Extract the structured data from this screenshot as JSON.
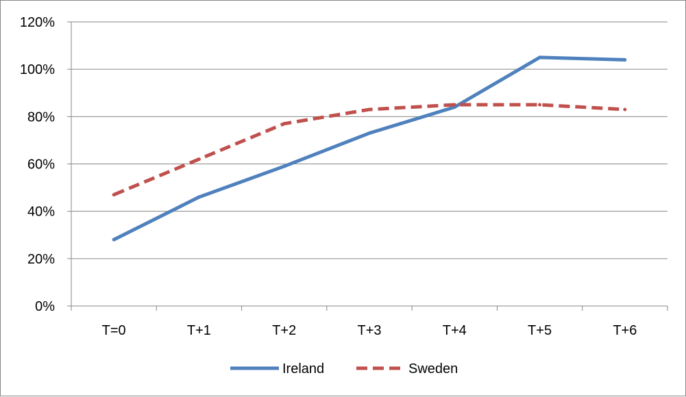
{
  "chart_data": {
    "type": "line",
    "title": "",
    "xlabel": "",
    "ylabel": "",
    "categories": [
      "T=0",
      "T+1",
      "T+2",
      "T+3",
      "T+4",
      "T+5",
      "T+6"
    ],
    "y_tick_labels": [
      "0%",
      "20%",
      "40%",
      "60%",
      "80%",
      "100%",
      "120%"
    ],
    "y_ticks": [
      0,
      20,
      40,
      60,
      80,
      100,
      120
    ],
    "ylim": [
      0,
      120
    ],
    "y_unit": "%",
    "grid": "horizontal",
    "legend_position": "bottom",
    "series": [
      {
        "name": "Ireland",
        "color": "#4F81BD",
        "dash": "solid",
        "values": [
          28,
          46,
          59,
          73,
          84,
          105,
          104
        ]
      },
      {
        "name": "Sweden",
        "color": "#C0504D",
        "dash": "dashed",
        "values": [
          47,
          62,
          77,
          83,
          85,
          85,
          83
        ]
      }
    ]
  }
}
